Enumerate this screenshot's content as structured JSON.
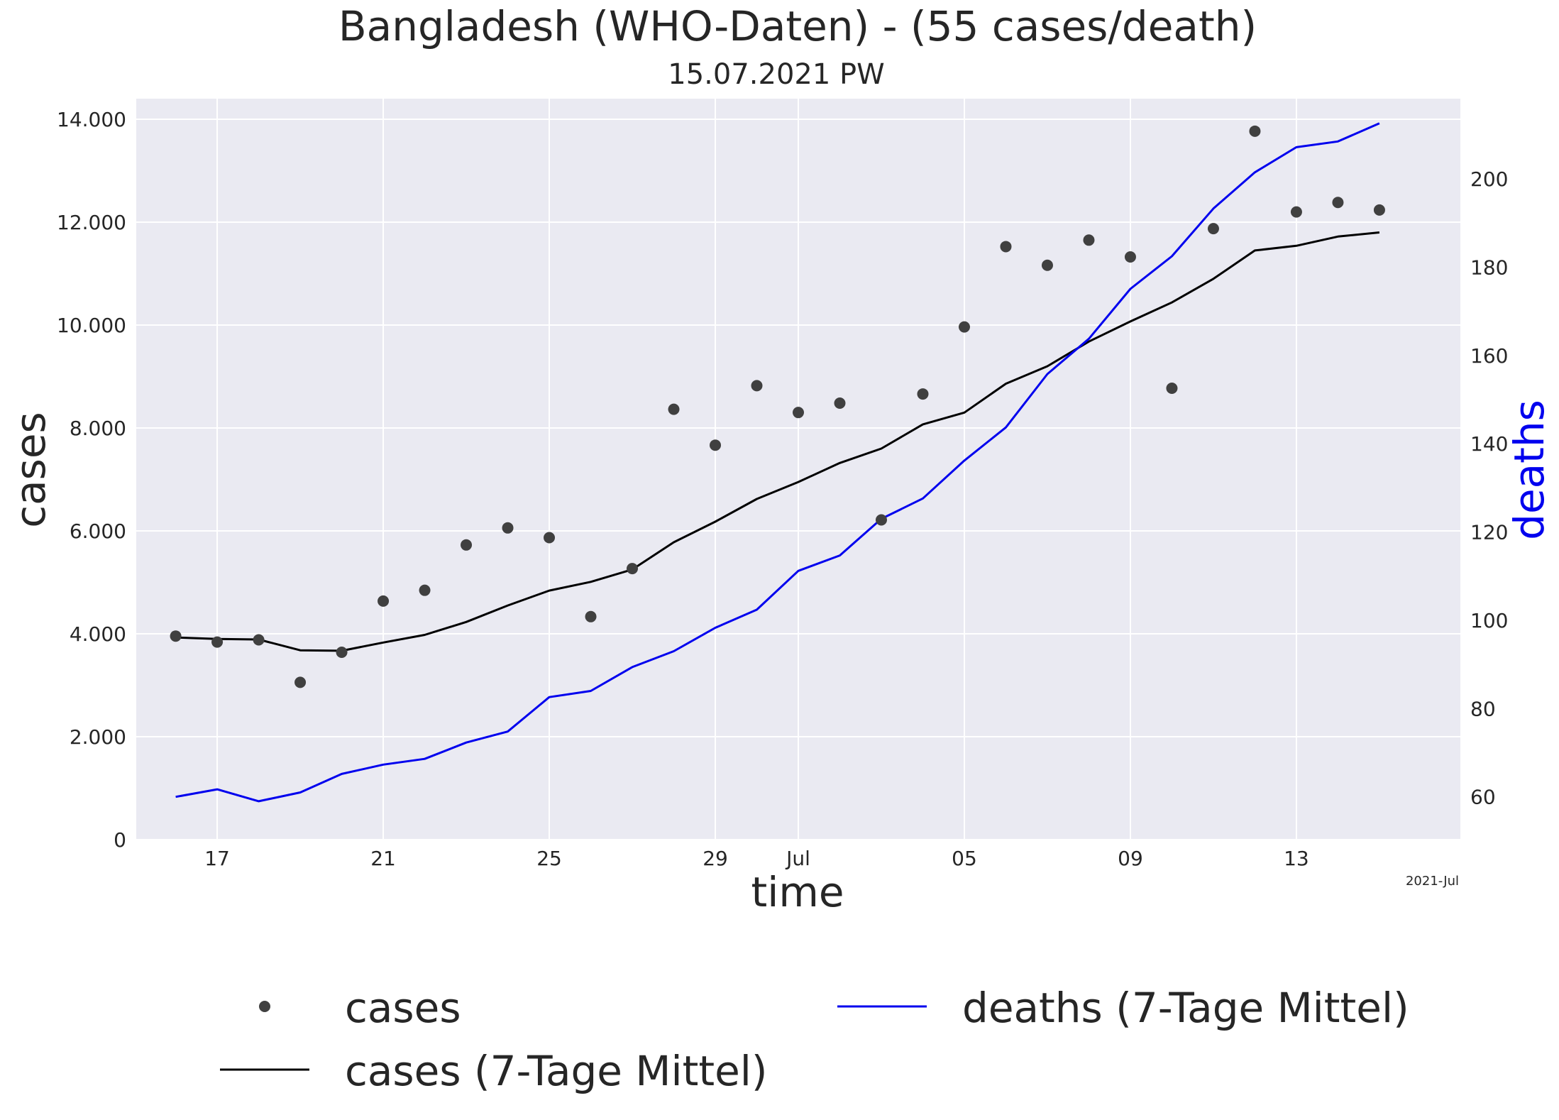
{
  "chart_data": {
    "type": "line",
    "title": "Bangladesh (WHO-Daten) - (55 cases/death)",
    "subtitle": "15.07.2021 PW",
    "xlabel": "time",
    "ylabel": "cases",
    "y2label": "deaths",
    "x_offset_label": "2021-Jul",
    "x_range": [
      -0.95,
      30.95
    ],
    "ylim": [
      0,
      14400
    ],
    "y2lim": [
      50.3,
      218.2
    ],
    "x_ticks": [
      {
        "pos": 1,
        "label": "17"
      },
      {
        "pos": 5,
        "label": "21"
      },
      {
        "pos": 9,
        "label": "25"
      },
      {
        "pos": 13,
        "label": "29"
      },
      {
        "pos": 15,
        "label": "Jul"
      },
      {
        "pos": 19,
        "label": "05"
      },
      {
        "pos": 23,
        "label": "09"
      },
      {
        "pos": 27,
        "label": "13"
      }
    ],
    "y_ticks": [
      {
        "value": 0,
        "label": "0"
      },
      {
        "value": 2000,
        "label": "2.000"
      },
      {
        "value": 4000,
        "label": "4.000"
      },
      {
        "value": 6000,
        "label": "6.000"
      },
      {
        "value": 8000,
        "label": "8.000"
      },
      {
        "value": 10000,
        "label": "10.000"
      },
      {
        "value": 12000,
        "label": "12.000"
      },
      {
        "value": 14000,
        "label": "14.000"
      }
    ],
    "y2_ticks": [
      {
        "value": 60,
        "label": "60"
      },
      {
        "value": 80,
        "label": "80"
      },
      {
        "value": 100,
        "label": "100"
      },
      {
        "value": 120,
        "label": "120"
      },
      {
        "value": 140,
        "label": "140"
      },
      {
        "value": 160,
        "label": "160"
      },
      {
        "value": 180,
        "label": "180"
      },
      {
        "value": 200,
        "label": "200"
      }
    ],
    "dates": [
      "2021-06-16",
      "2021-06-17",
      "2021-06-18",
      "2021-06-19",
      "2021-06-20",
      "2021-06-21",
      "2021-06-22",
      "2021-06-23",
      "2021-06-24",
      "2021-06-25",
      "2021-06-26",
      "2021-06-27",
      "2021-06-28",
      "2021-06-29",
      "2021-06-30",
      "2021-07-01",
      "2021-07-02",
      "2021-07-03",
      "2021-07-04",
      "2021-07-05",
      "2021-07-06",
      "2021-07-07",
      "2021-07-08",
      "2021-07-09",
      "2021-07-10",
      "2021-07-11",
      "2021-07-12",
      "2021-07-13",
      "2021-07-14",
      "2021-07-15"
    ],
    "series": [
      {
        "name": "cases",
        "kind": "scatter",
        "axis": "left",
        "color": "#404040",
        "values": [
          3956,
          3840,
          3883,
          3057,
          3641,
          4636,
          4846,
          5727,
          6058,
          5869,
          4334,
          5268,
          8364,
          7666,
          8822,
          8301,
          8483,
          6214,
          8661,
          9964,
          11525,
          11162,
          11651,
          11324,
          8772,
          11874,
          13768,
          12198,
          12383,
          12236
        ]
      },
      {
        "name": "cases (7-Tage Mittel)",
        "kind": "line",
        "axis": "left",
        "color": "#000000",
        "values": [
          3930,
          3900,
          3890,
          3680,
          3670,
          3830,
          3980,
          4230,
          4550,
          4840,
          5010,
          5250,
          5780,
          6180,
          6620,
          6950,
          7320,
          7600,
          8070,
          8300,
          8860,
          9200,
          9680,
          10070,
          10440,
          10900,
          11450,
          11540,
          11720,
          11800
        ]
      },
      {
        "name": "deaths (7-Tage Mittel)",
        "kind": "line",
        "axis": "right",
        "color": "#0000ee",
        "values": [
          60,
          61.7,
          59,
          61,
          65.2,
          67.3,
          68.6,
          72.3,
          74.8,
          82.6,
          84,
          89.4,
          93,
          98.3,
          102.4,
          111.2,
          114.7,
          123,
          127.6,
          136.2,
          143.7,
          155.8,
          163.8,
          175.1,
          182.5,
          193.3,
          201.5,
          207.2,
          208.5,
          212.6
        ]
      }
    ],
    "legend": {
      "placement": "bottom-center",
      "columns": 2,
      "entries": [
        "cases",
        "cases (7-Tage Mittel)",
        "deaths (7-Tage Mittel)"
      ]
    },
    "grid": true
  },
  "colors": {
    "plot_background": "#eaeaf2",
    "grid": "#ffffff",
    "text": "#262626",
    "deaths_label": "#0000ee"
  }
}
